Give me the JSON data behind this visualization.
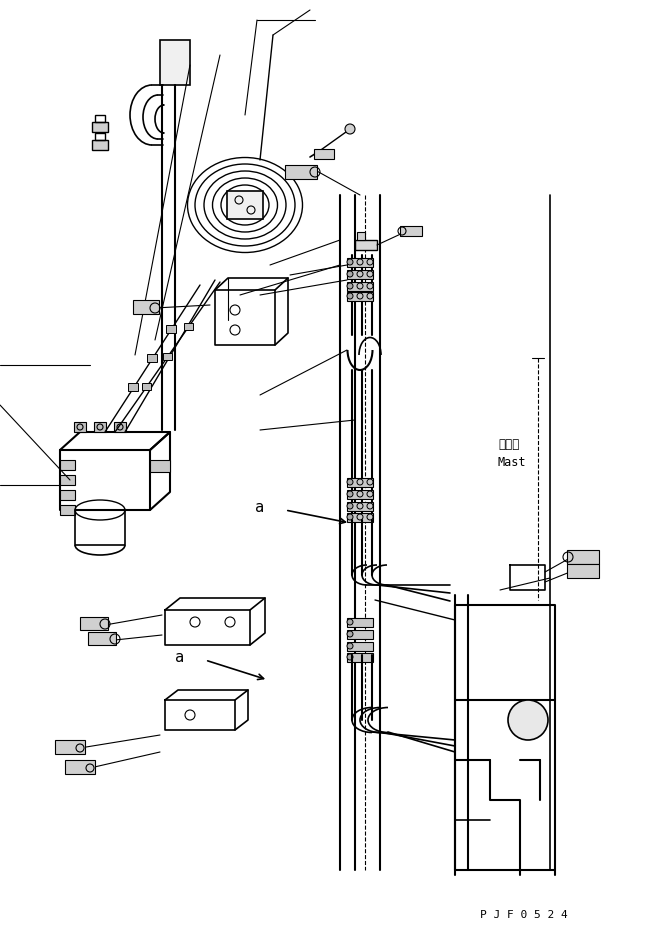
{
  "background_color": "#ffffff",
  "line_color": "#000000",
  "fig_width": 6.69,
  "fig_height": 9.31,
  "dpi": 100,
  "label_a1": "a",
  "label_a2": "a",
  "label_mast_jp": "マスト",
  "label_mast_en": "Mast",
  "label_code": "P J F 0 5 2 4"
}
